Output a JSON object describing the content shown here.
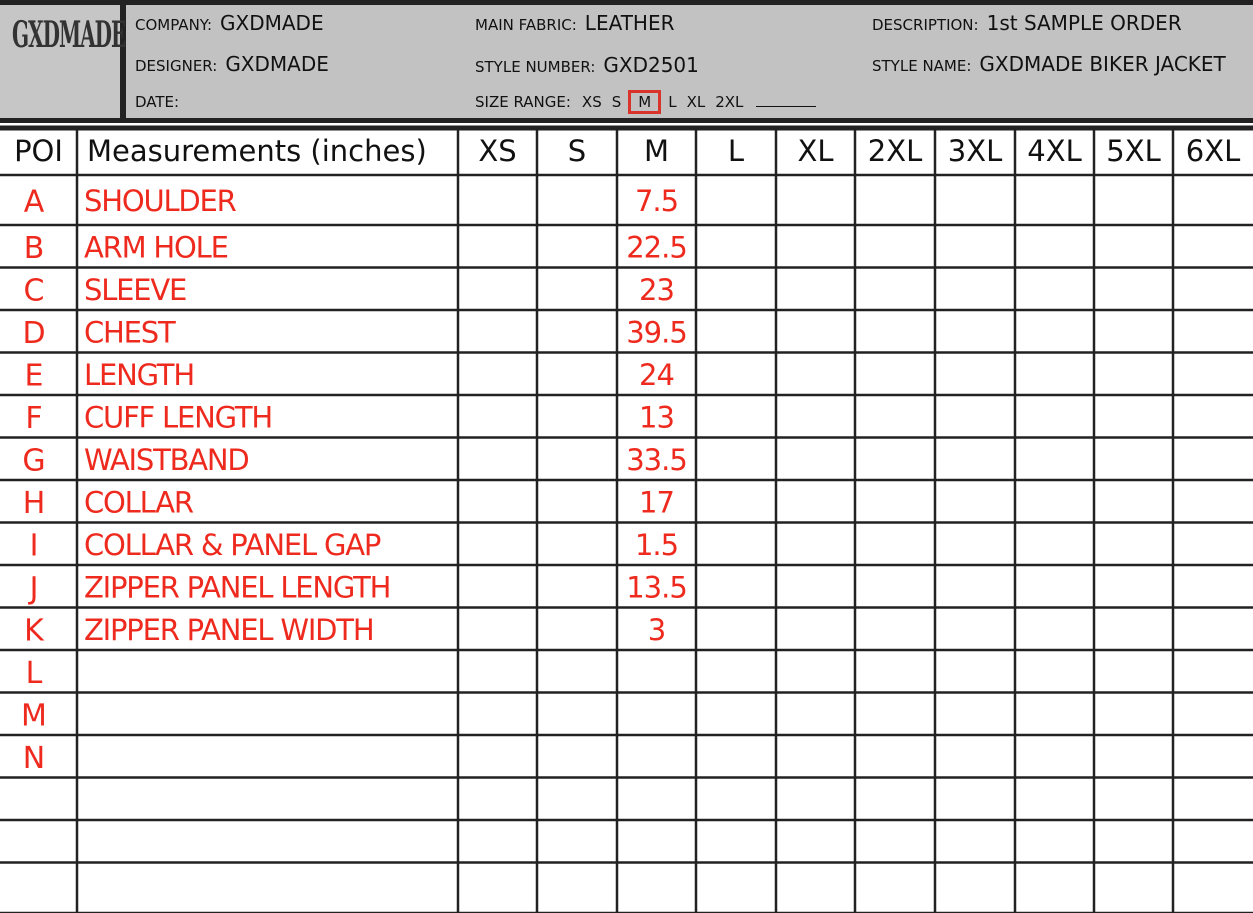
{
  "header": {
    "logo": {
      "text": "GXDMADE"
    },
    "company": {
      "label": "COMPANY:",
      "value": "GXDMADE"
    },
    "designer": {
      "label": "DESIGNER:",
      "value": "GXDMADE"
    },
    "date": {
      "label": "DATE:"
    },
    "main_fabric": {
      "label": "MAIN FABRIC:",
      "value": "LEATHER"
    },
    "style_number": {
      "label": "STYLE NUMBER:",
      "value": "GXD2501"
    },
    "size_range": {
      "label": "SIZE RANGE:",
      "sizes": [
        {
          "label": "XS"
        },
        {
          "label": "S"
        },
        {
          "label": "M",
          "selected": true
        },
        {
          "label": "L"
        },
        {
          "label": "XL"
        },
        {
          "label": "2XL"
        }
      ]
    },
    "description": {
      "label": "DESCRIPTION:",
      "value": "1st SAMPLE ORDER"
    },
    "style_name": {
      "label": "STYLE NAME:",
      "value": "GXDMADE BIKER JACKET"
    }
  },
  "table": {
    "columns": [
      "POI",
      "Measurements (inches)",
      "XS",
      "S",
      "M",
      "L",
      "XL",
      "2XL",
      "3XL",
      "4XL",
      "5XL",
      "6XL"
    ],
    "rows": [
      {
        "poi": "A",
        "measurement": "SHOULDER",
        "M": 7.5
      },
      {
        "poi": "B",
        "measurement": "ARM HOLE",
        "M": 22.5
      },
      {
        "poi": "C",
        "measurement": "SLEEVE",
        "M": 23
      },
      {
        "poi": "D",
        "measurement": "CHEST",
        "M": 39.5
      },
      {
        "poi": "E",
        "measurement": "LENGTH",
        "M": 24
      },
      {
        "poi": "F",
        "measurement": "CUFF LENGTH",
        "M": 13
      },
      {
        "poi": "G",
        "measurement": "WAISTBAND",
        "M": 33.5
      },
      {
        "poi": "H",
        "measurement": "COLLAR",
        "M": 17
      },
      {
        "poi": "I",
        "measurement": "COLLAR & PANEL GAP",
        "M": 1.5
      },
      {
        "poi": "J",
        "measurement": "ZIPPER PANEL LENGTH",
        "M": 13.5
      },
      {
        "poi": "K",
        "measurement": "ZIPPER PANEL WIDTH",
        "M": 3
      },
      {
        "poi": "L"
      },
      {
        "poi": "M"
      },
      {
        "poi": "N"
      }
    ]
  }
}
